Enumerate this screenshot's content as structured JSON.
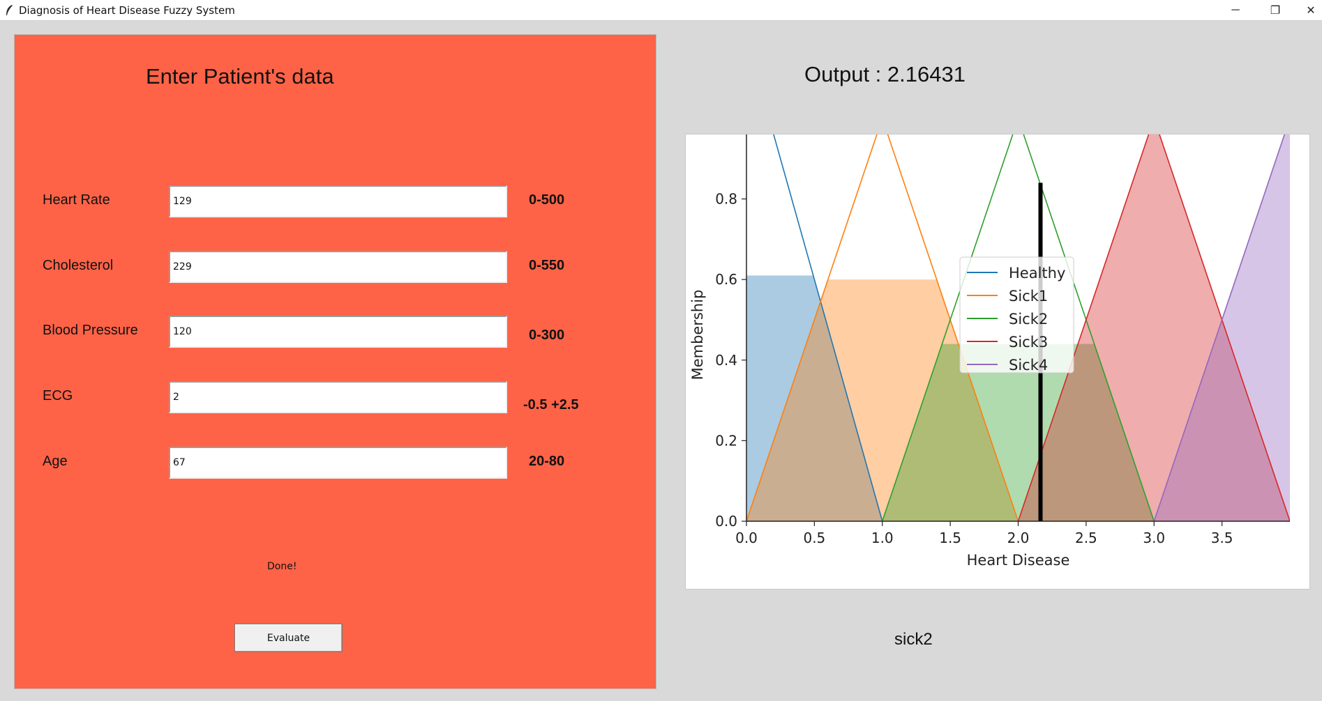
{
  "window": {
    "title": "Diagnosis of Heart Disease Fuzzy System",
    "minimize": "─",
    "restore": "❐",
    "close": "✕"
  },
  "form": {
    "title": "Enter Patient's data",
    "fields": [
      {
        "label": "Heart Rate",
        "value": "129",
        "range": "0-500"
      },
      {
        "label": "Cholesterol",
        "value": "229",
        "range": "0-550"
      },
      {
        "label": "Blood Pressure",
        "value": "120",
        "range": "0-300"
      },
      {
        "label": "ECG",
        "value": "2",
        "range": "-0.5 +2.5"
      },
      {
        "label": "Age",
        "value": "67",
        "range": "20-80"
      }
    ],
    "status": "Done!",
    "evaluate_label": "Evaluate"
  },
  "output": {
    "label": "Output : 2.16431",
    "result": "sick2"
  },
  "chart_data": {
    "type": "area",
    "xlabel": "Heart Disease",
    "ylabel": "Membership",
    "xlim": [
      0,
      4
    ],
    "ylim": [
      0,
      0.96
    ],
    "xticks": [
      "0.0",
      "0.5",
      "1.0",
      "1.5",
      "2.0",
      "2.5",
      "3.0",
      "3.5"
    ],
    "yticks": [
      "0.0",
      "0.2",
      "0.4",
      "0.6",
      "0.8"
    ],
    "legend_position": "center",
    "grid": false,
    "series": [
      {
        "name": "Healthy",
        "color": "#1f77b4",
        "points": [
          [
            0,
            1.2
          ],
          [
            1,
            0
          ]
        ],
        "activation": 0.61,
        "clip_range": [
          0,
          1
        ]
      },
      {
        "name": "Sick1",
        "color": "#ff7f0e",
        "points": [
          [
            0,
            0
          ],
          [
            1,
            1
          ],
          [
            2,
            0
          ]
        ],
        "activation": 0.6,
        "clip_range": [
          0,
          2
        ]
      },
      {
        "name": "Sick2",
        "color": "#2ca02c",
        "points": [
          [
            1,
            0
          ],
          [
            2,
            1
          ],
          [
            3,
            0
          ]
        ],
        "activation": 0.44,
        "clip_range": [
          1,
          3
        ]
      },
      {
        "name": "Sick3",
        "color": "#d62728",
        "points": [
          [
            2,
            0
          ],
          [
            3,
            1
          ],
          [
            4,
            0
          ]
        ],
        "activation": 1.0,
        "clip_range": [
          2,
          4
        ]
      },
      {
        "name": "Sick4",
        "color": "#9467bd",
        "points": [
          [
            3,
            0
          ],
          [
            4,
            1
          ]
        ],
        "activation": 1.0,
        "clip_range": [
          3,
          4
        ]
      }
    ],
    "output_marker": {
      "x": 2.16431,
      "height": 0.84
    }
  }
}
